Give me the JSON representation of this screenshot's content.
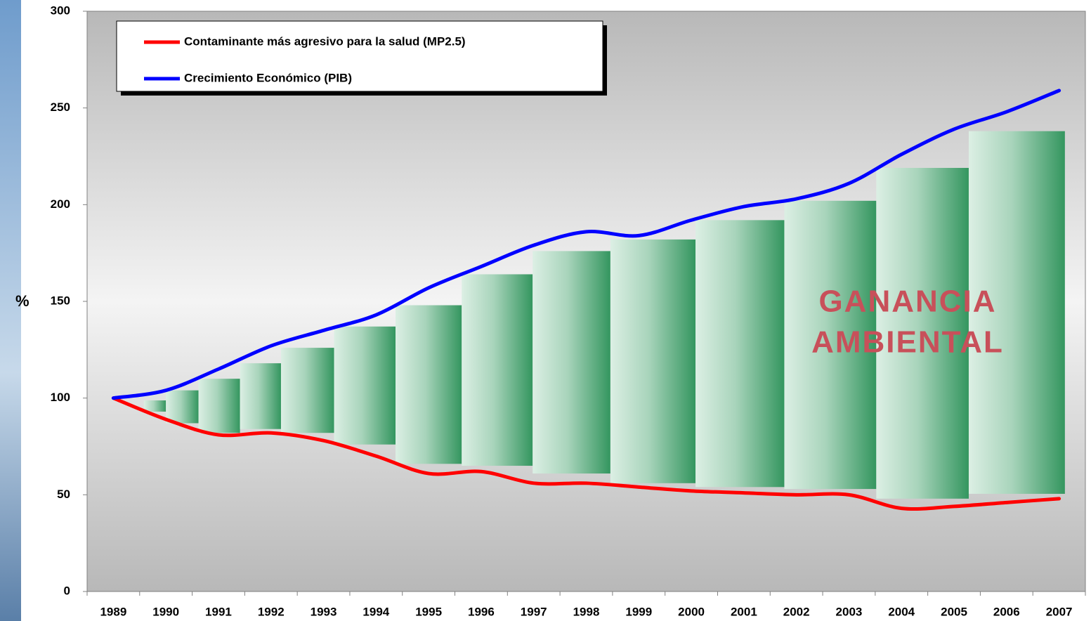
{
  "chart_data": {
    "type": "line",
    "y_label": "%",
    "categories": [
      "1989",
      "1990",
      "1991",
      "1992",
      "1993",
      "1994",
      "1995",
      "1996",
      "1997",
      "1998",
      "1999",
      "2000",
      "2001",
      "2002",
      "2003",
      "2004",
      "2005",
      "2006",
      "2007"
    ],
    "series": [
      {
        "name": "Contaminante más agresivo para la salud (MP2.5)",
        "color": "#ff0000",
        "values": [
          100,
          89,
          81,
          82,
          78,
          70,
          61,
          62,
          56,
          56,
          54,
          52,
          51,
          50,
          50,
          43,
          44,
          46,
          48
        ]
      },
      {
        "name": "Crecimiento Económico (PIB)",
        "color": "#0000ff",
        "values": [
          100,
          104,
          115,
          127,
          135,
          143,
          157,
          168,
          179,
          186,
          184,
          192,
          199,
          203,
          211,
          226,
          239,
          248,
          259
        ]
      }
    ],
    "bars": {
      "x_start": [
        1989.58,
        1990.0,
        1990.62,
        1991.41,
        1992.19,
        1993.2,
        1994.37,
        1995.63,
        1996.98,
        1998.46,
        2000.08,
        2001.77,
        2003.52,
        2005.28
      ],
      "x_end": [
        1990.0,
        1990.62,
        1991.41,
        1992.19,
        1993.2,
        1994.37,
        1995.63,
        1996.98,
        1998.46,
        2000.08,
        2001.77,
        2003.52,
        2005.28,
        2007.11
      ],
      "low": [
        93,
        87,
        82,
        84,
        82,
        76,
        66,
        65,
        61,
        56,
        54,
        53,
        48,
        50.5
      ],
      "high": [
        98.8,
        104,
        110,
        118,
        126,
        137,
        148,
        164,
        176,
        182,
        192,
        202,
        219,
        238
      ]
    },
    "annotation": [
      "GANANCIA",
      "AMBIENTAL"
    ],
    "ylim": [
      0,
      300
    ],
    "yticks": [
      0,
      50,
      100,
      150,
      200,
      250,
      300
    ]
  }
}
